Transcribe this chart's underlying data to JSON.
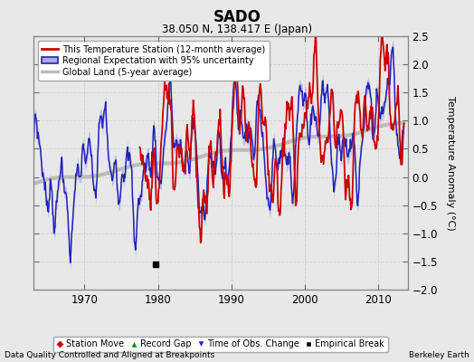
{
  "title": "SADO",
  "subtitle": "38.050 N, 138.417 E (Japan)",
  "ylabel": "Temperature Anomaly (°C)",
  "footer_left": "Data Quality Controlled and Aligned at Breakpoints",
  "footer_right": "Berkeley Earth",
  "xlim": [
    1963,
    2014
  ],
  "ylim": [
    -2.0,
    2.5
  ],
  "yticks": [
    -2,
    -1.5,
    -1,
    -0.5,
    0,
    0.5,
    1,
    1.5,
    2,
    2.5
  ],
  "xticks": [
    1970,
    1980,
    1990,
    2000,
    2010
  ],
  "bg_color": "#e8e8e8",
  "plot_bg_color": "#e8e8e8",
  "empirical_break_x": 1979.7,
  "empirical_break_y": -1.55,
  "legend_labels": [
    "This Temperature Station (12-month average)",
    "Regional Expectation with 95% uncertainty",
    "Global Land (5-year average)"
  ],
  "legend2_labels": [
    "Station Move",
    "Record Gap",
    "Time of Obs. Change",
    "Empirical Break"
  ],
  "station_color": "#cc0000",
  "regional_color": "#2222bb",
  "regional_fill_color": "#aaaadd",
  "global_color": "#bbbbbb",
  "global_linewidth": 3.0,
  "station_linewidth": 1.3,
  "regional_linewidth": 1.1,
  "figsize": [
    5.24,
    4.0
  ],
  "dpi": 100
}
